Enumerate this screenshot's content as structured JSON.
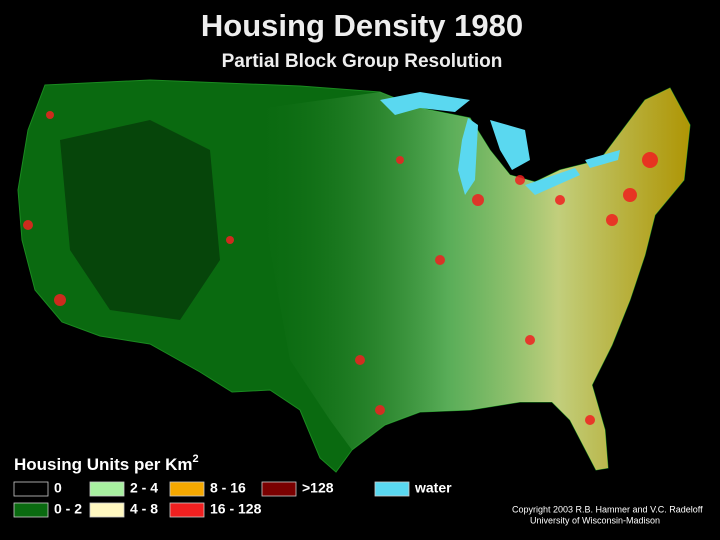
{
  "title": "Housing Density 1980",
  "subtitle": "Partial Block Group Resolution",
  "legend": {
    "title": "Housing Units per Km",
    "title_superscript": "2",
    "items": [
      {
        "label": "0",
        "color": "#000000"
      },
      {
        "label": "2 - 4",
        "color": "#a8f0a0"
      },
      {
        "label": "8 - 16",
        "color": "#f5a800"
      },
      {
        "label": ">128",
        "color": "#7a0000"
      },
      {
        "label": "water",
        "color": "#5ad8f0"
      },
      {
        "label": "0 - 2",
        "color": "#0a6a10"
      },
      {
        "label": "4 - 8",
        "color": "#fff8c0"
      },
      {
        "label": "16 - 128",
        "color": "#f02020"
      }
    ]
  },
  "credits": [
    "Copyright 2003 R.B. Hammer and V.C. Radeloff",
    "University of Wisconsin-Madison"
  ]
}
